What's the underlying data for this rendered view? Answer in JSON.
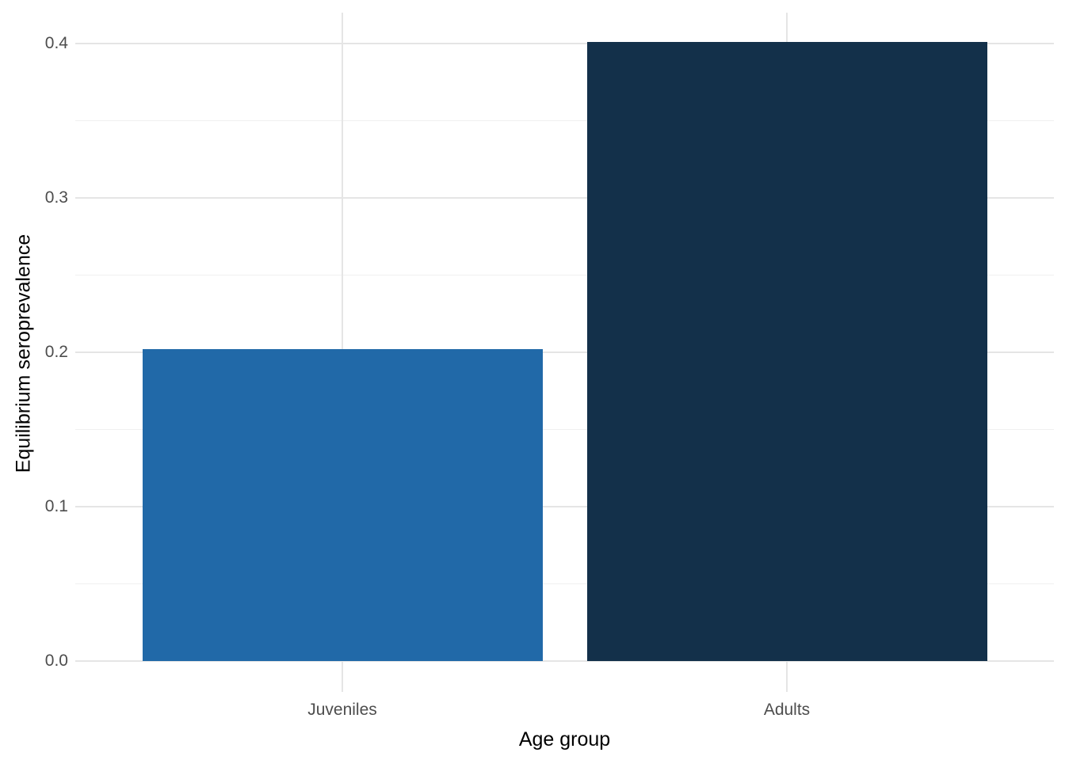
{
  "chart_data": {
    "type": "bar",
    "title": "",
    "xlabel": "Age group",
    "ylabel": "Equilibrium seroprevalence",
    "categories": [
      "Juveniles",
      "Adults"
    ],
    "values": [
      0.202,
      0.401
    ],
    "bar_colors": [
      "#2169A8",
      "#13304A"
    ],
    "ylim": [
      -0.021,
      0.42
    ],
    "yticks": [
      0.0,
      0.1,
      0.2,
      0.3,
      0.4
    ],
    "ytick_labels": [
      "0.0",
      "0.1",
      "0.2",
      "0.3",
      "0.4"
    ],
    "minor_yticks": [
      0.05,
      0.15,
      0.25,
      0.35
    ],
    "grid": "on",
    "legend": "none",
    "style": {
      "background_color": "#FFFFFF",
      "major_grid_color": "#E5E5E5",
      "minor_grid_color": "#F0F0F0",
      "tick_label_color": "#4D4D4D",
      "axis_title_color": "#000000"
    }
  }
}
